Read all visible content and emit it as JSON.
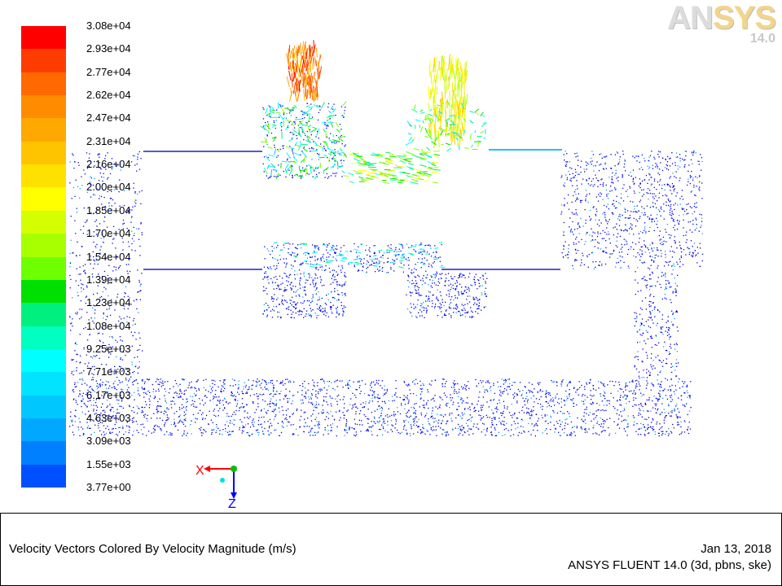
{
  "legend": {
    "levels": [
      {
        "value": "3.08e+04",
        "color": "#ff0000"
      },
      {
        "value": "2.93e+04",
        "color": "#ff3c00"
      },
      {
        "value": "2.77e+04",
        "color": "#ff6900"
      },
      {
        "value": "2.62e+04",
        "color": "#ff8c00"
      },
      {
        "value": "2.47e+04",
        "color": "#ffa800"
      },
      {
        "value": "2.31e+04",
        "color": "#ffc400"
      },
      {
        "value": "2.16e+04",
        "color": "#ffe100"
      },
      {
        "value": "2.00e+04",
        "color": "#ffff00"
      },
      {
        "value": "1.85e+04",
        "color": "#d4ff00"
      },
      {
        "value": "1.70e+04",
        "color": "#a8ff00"
      },
      {
        "value": "1.54e+04",
        "color": "#6eff00"
      },
      {
        "value": "1.39e+04",
        "color": "#00e000"
      },
      {
        "value": "1.23e+04",
        "color": "#00f080"
      },
      {
        "value": "1.08e+04",
        "color": "#00ffc0"
      },
      {
        "value": "9.25e+03",
        "color": "#00ffff"
      },
      {
        "value": "7.71e+03",
        "color": "#00e4ff"
      },
      {
        "value": "6.17e+03",
        "color": "#00c8ff"
      },
      {
        "value": "4.63e+03",
        "color": "#00a8ff"
      },
      {
        "value": "3.09e+03",
        "color": "#0080ff"
      },
      {
        "value": "1.55e+03",
        "color": "#0050ff"
      },
      {
        "value": "3.77e+00",
        "color": "#0000ff"
      }
    ]
  },
  "logo": {
    "brand_a": "AN",
    "brand_b": "SYS",
    "version": "14.0"
  },
  "axes": {
    "x_label": "X",
    "z_label": "Z"
  },
  "footer": {
    "title": "Velocity Vectors Colored By Velocity Magnitude (m/s)",
    "date": "Jan 13, 2018",
    "solver": "ANSYS FLUENT 14.0 (3d, pbns, ske)"
  }
}
